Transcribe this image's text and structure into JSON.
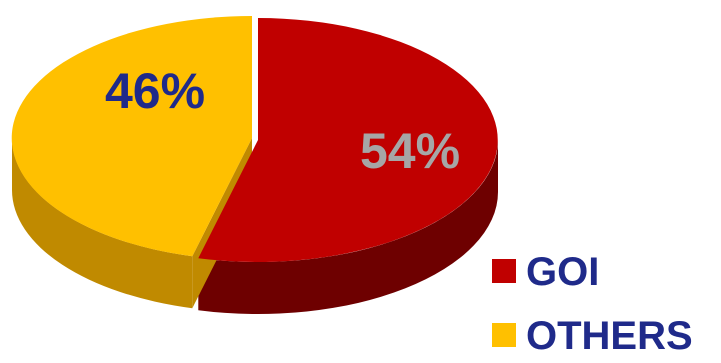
{
  "chart_data": {
    "type": "pie",
    "style": "3d",
    "series": [
      {
        "name": "GOI",
        "value": 54,
        "label": "54%",
        "color": "#c00000",
        "side_color": "#6e0000",
        "label_color": "#a6a6a6"
      },
      {
        "name": "OTHERS",
        "value": 46,
        "label": "46%",
        "color": "#ffc000",
        "side_color": "#c08a00",
        "label_color": "#1f2a8a"
      }
    ],
    "legend": {
      "position": "bottom-right",
      "text_color": "#1f2a8a"
    }
  }
}
